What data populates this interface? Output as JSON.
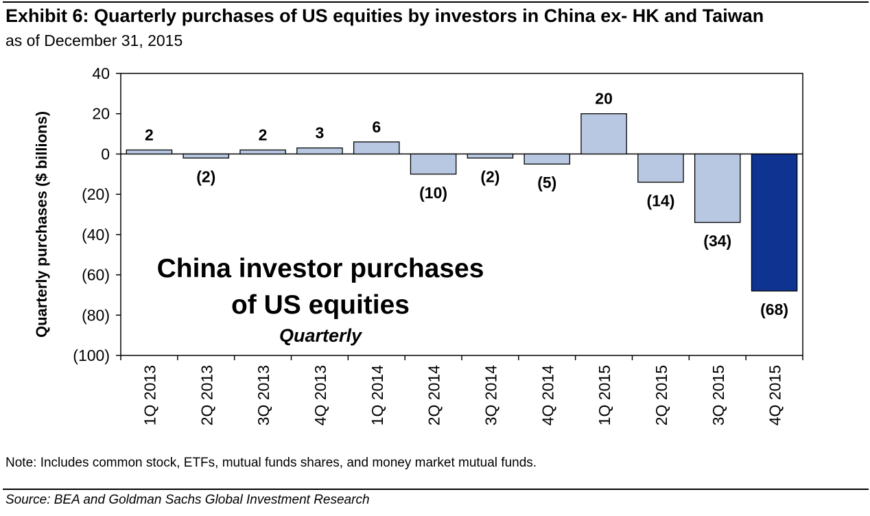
{
  "header": {
    "title": "Exhibit 6: Quarterly purchases of US equities by investors in China ex- HK and Taiwan",
    "subtitle": "as of December 31, 2015"
  },
  "footer": {
    "note": "Note: Includes common stock, ETFs, mutual funds shares, and money market mutual funds.",
    "source": "Source: BEA and Goldman Sachs Global Investment Research"
  },
  "chart_data": {
    "type": "bar",
    "title": "China investor purchases of US equities",
    "title_lines": [
      "China investor purchases",
      "of US equities"
    ],
    "subtitle": "Quarterly",
    "xlabel": "",
    "ylabel": "Quarterly purchases ($ billions)",
    "ylim": [
      -100,
      40
    ],
    "yticks": [
      40,
      20,
      0,
      -20,
      -40,
      -60,
      -80,
      -100
    ],
    "ytick_labels": [
      "40",
      "20",
      "0",
      "(20)",
      "(40)",
      "(60)",
      "(80)",
      "(100)"
    ],
    "grid": false,
    "categories": [
      "1Q 2013",
      "2Q 2013",
      "3Q 2013",
      "4Q 2013",
      "1Q 2014",
      "2Q 2014",
      "3Q 2014",
      "4Q 2014",
      "1Q 2015",
      "2Q 2015",
      "3Q 2015",
      "4Q 2015"
    ],
    "values": [
      2,
      -2,
      2,
      3,
      6,
      -10,
      -2,
      -5,
      20,
      -14,
      -34,
      -68
    ],
    "data_labels": [
      "2",
      "(2)",
      "2",
      "3",
      "6",
      "(10)",
      "(2)",
      "(5)",
      "20",
      "(14)",
      "(34)",
      "(68)"
    ],
    "colors": {
      "bar": "#b8c8e2",
      "highlight": "#0e3390",
      "highlight_index": 11,
      "stroke": "#000000"
    }
  }
}
